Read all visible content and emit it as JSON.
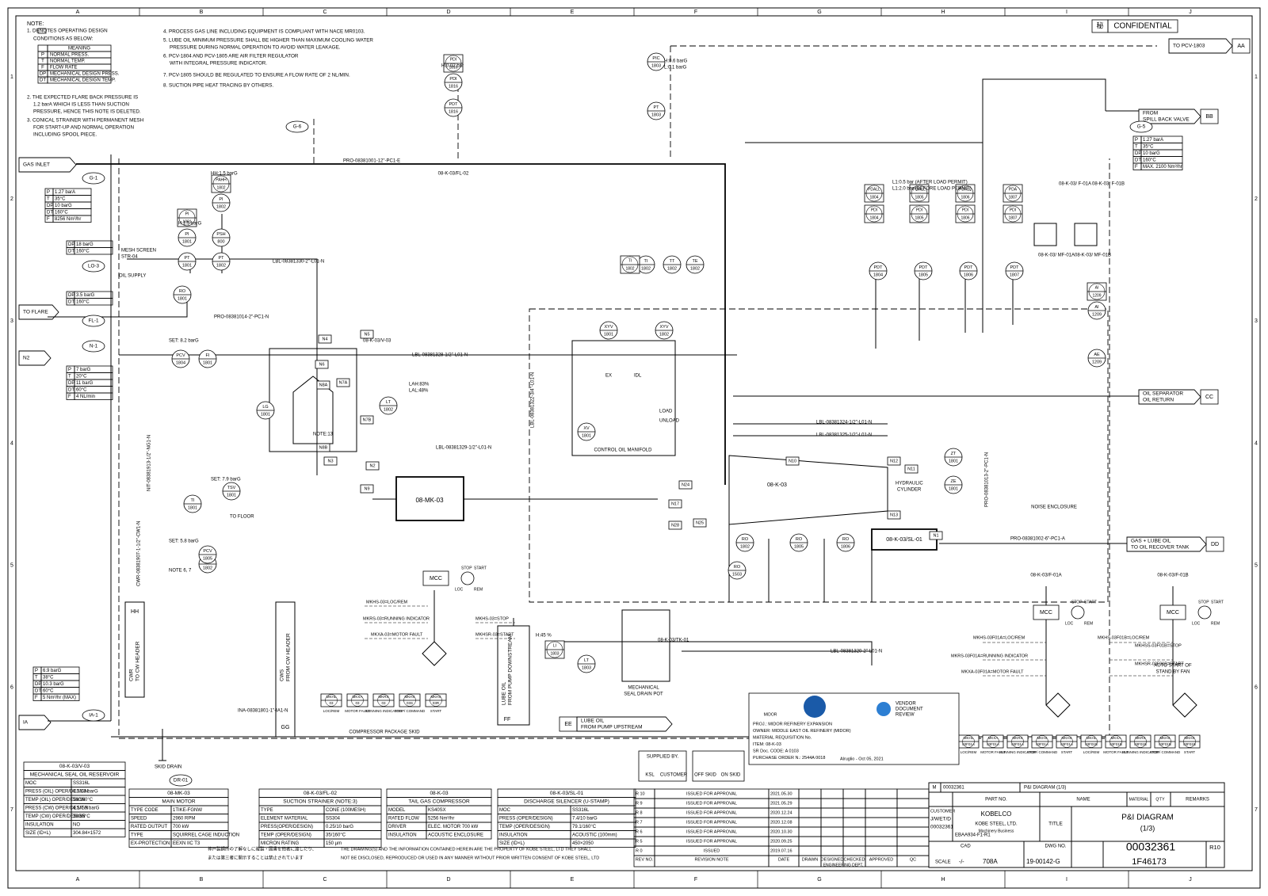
{
  "header": {
    "confidential_mark": "秘",
    "confidential": "CONFIDENTIAL"
  },
  "grid": {
    "columns": [
      "A",
      "B",
      "C",
      "D",
      "E",
      "F",
      "G",
      "H",
      "I",
      "J"
    ],
    "rows": [
      "1",
      "2",
      "3",
      "4",
      "5",
      "6",
      "7"
    ]
  },
  "notes": {
    "title": "NOTE:",
    "items": [
      [
        "1.      DENOTES OPERATING DESIGN",
        "CONDITIONS AS BELOW:"
      ],
      [
        "2. THE EXPECTED FLARE BACK PRESSURE IS",
        "1.2 barA WHICH IS LESS THAN SUCTION",
        "PRESSURE, HENCE THIS NOTE IS DELETED."
      ],
      [
        "3. CONICAL STRAINER WITH PERMANENT MESH",
        "FOR START-UP AND NORMAL OPERATION",
        "INCLUDING SPOOL PIECE."
      ],
      [
        "4. PROCESS GAS LINE INCLUDING EQUIPMENT IS COMPLIANT WITH NACE MR0103."
      ],
      [
        "5. LUBE OIL MINIMUM PRESSURE SHALL BE HIGHER THAN MAXIMUM COOLING WATER",
        "PRESSURE DURING NORMAL OPERATION TO AVOID WATER LEAKAGE."
      ],
      [
        "6. PCV-1804 AND PCV-1805 ARE AIR FILTER REGULATOR",
        "WITH INTEGRAL PRESSURE INDICATOR."
      ],
      [
        "7. PCV-1805 SHOULD BE REGULATED TO ENSURE A FLOW RATE OF 2 NL/MIN."
      ],
      [
        "8. SUCTION PIPE HEAT TRACING BY OTHERS."
      ]
    ],
    "legend": {
      "header": "MEANING",
      "rows": [
        [
          "P",
          "NORMAL PRESS."
        ],
        [
          "T",
          "NORMAL TEMP."
        ],
        [
          "F",
          "FLOW RATE"
        ],
        [
          "DP",
          "MECHANICAL DESIGN PRESS."
        ],
        [
          "DT",
          "MECHANICAL DESIGN TEMP."
        ]
      ]
    }
  },
  "connectors": [
    {
      "label": [
        "GAS INLET"
      ]
    },
    {
      "label": [
        "TO FLARE"
      ]
    },
    {
      "label": [
        "N2"
      ]
    },
    {
      "label": [
        "IA"
      ]
    },
    {
      "code": "AA",
      "label": [
        "TO PCV-1803"
      ]
    },
    {
      "code": "BB",
      "label": [
        "FROM",
        "SPILL BACK VALVE"
      ]
    },
    {
      "code": "CC",
      "label": [
        "OIL SEPARATOR",
        "OIL RETURN"
      ]
    },
    {
      "code": "DD",
      "label": [
        "GAS + LUBE OIL",
        "TO OIL RECOVER TANK"
      ]
    },
    {
      "code": "EE",
      "label": [
        "LUBE OIL",
        "FROM PUMP UPSTREAM"
      ]
    },
    {
      "code": "HH",
      "label": [
        "CWR",
        "TO CW HEADER"
      ]
    },
    {
      "code": "GG",
      "label": [
        "CWS",
        "FROM CW HEADER"
      ]
    },
    {
      "code": "FF",
      "label": [
        "LUBE OIL",
        "FROM PUMP DOWNSTREAM"
      ]
    }
  ],
  "callouts": [
    "G-1",
    "G-5",
    "LO-3",
    "FL-1",
    "N-1",
    "IA-1",
    "G-6",
    "DR-01"
  ],
  "conditions": [
    [
      [
        "P",
        "1.27 barA"
      ],
      [
        "T",
        "35°C"
      ],
      [
        "DP",
        "10 barG"
      ],
      [
        "DT",
        "160°C"
      ],
      [
        "F",
        "8256 Nm³/hr"
      ]
    ],
    [
      [
        "P",
        "1.27 barA"
      ],
      [
        "T",
        "35°C"
      ],
      [
        "DP",
        "10 barG"
      ],
      [
        "DT",
        "160°C"
      ],
      [
        "F",
        "MAX. 2100 Nm³/hr"
      ]
    ],
    [
      [
        "DP",
        "18 barG"
      ],
      [
        "DT",
        "160°C"
      ]
    ],
    [
      [
        "DP",
        "3.5 barG"
      ],
      [
        "DT",
        "160°C"
      ]
    ],
    [
      [
        "P",
        "7 barG"
      ],
      [
        "T",
        "20°C"
      ],
      [
        "DP",
        "11 barG"
      ],
      [
        "DT",
        "60°C"
      ],
      [
        "F",
        "4 NL/min"
      ]
    ],
    [
      [
        "P",
        "6.9 barG"
      ],
      [
        "T",
        "38°C"
      ],
      [
        "DP",
        "10.3 barG"
      ],
      [
        "DT",
        "60°C"
      ],
      [
        "F",
        "5 Nm³/hr (MAX)"
      ]
    ]
  ],
  "instruments": [
    {
      "tag": "PDI",
      "num": "1816"
    },
    {
      "tag": "PDT",
      "num": "1816"
    },
    {
      "tag": "PIC",
      "num": "1803"
    },
    {
      "tag": "PT",
      "num": "1803"
    },
    {
      "tag": "PI",
      "num": "1802"
    },
    {
      "tag": "PSH",
      "num": "800"
    },
    {
      "tag": "PI",
      "num": "1801"
    },
    {
      "tag": "PT",
      "num": "1801"
    },
    {
      "tag": "PT",
      "num": "1802"
    },
    {
      "tag": "TI",
      "num": "1802"
    },
    {
      "tag": "TT",
      "num": "1802"
    },
    {
      "tag": "TE",
      "num": "1802"
    },
    {
      "tag": "RO",
      "num": "1801"
    },
    {
      "tag": "PCV",
      "num": "1804"
    },
    {
      "tag": "FI",
      "num": "1801"
    },
    {
      "tag": "LG",
      "num": "1801"
    },
    {
      "tag": "LT",
      "num": "1802"
    },
    {
      "tag": "TI",
      "num": "1801"
    },
    {
      "tag": "TSV",
      "num": "1801"
    },
    {
      "tag": "FI",
      "num": "1802"
    },
    {
      "tag": "XYV",
      "num": "1801"
    },
    {
      "tag": "XYV",
      "num": "1802"
    },
    {
      "tag": "XV",
      "num": "1801"
    },
    {
      "tag": "PDT",
      "num": "1804"
    },
    {
      "tag": "PDT",
      "num": "1805"
    },
    {
      "tag": "PDT",
      "num": "1806"
    },
    {
      "tag": "PDT",
      "num": "1807"
    },
    {
      "tag": "AI",
      "num": "1209"
    },
    {
      "tag": "AE",
      "num": "1209"
    },
    {
      "tag": "ZT",
      "num": "1801"
    },
    {
      "tag": "ZE",
      "num": "1801"
    },
    {
      "tag": "RO",
      "num": "1802"
    },
    {
      "tag": "RO",
      "num": "1805"
    },
    {
      "tag": "RO",
      "num": "1806"
    },
    {
      "tag": "RO",
      "num": "1503"
    },
    {
      "tag": "LT",
      "num": "1803"
    },
    {
      "tag": "PCV",
      "num": "1805"
    }
  ],
  "panel_instruments": [
    {
      "tag": "PDI",
      "num": "1816"
    },
    {
      "tag": "PAHH",
      "num": "1802"
    },
    {
      "tag": "PI",
      "num": "1801"
    },
    {
      "tag": "PDALL",
      "num": "1804"
    },
    {
      "tag": "PDI",
      "num": "1804"
    },
    {
      "tag": "PDALL",
      "num": "1805"
    },
    {
      "tag": "PDI",
      "num": "1805"
    },
    {
      "tag": "PDALL",
      "num": "1806"
    },
    {
      "tag": "PDI",
      "num": "1806"
    },
    {
      "tag": "PDA",
      "num": "1807"
    },
    {
      "tag": "PDI",
      "num": "1807"
    },
    {
      "tag": "TI",
      "num": "1802"
    },
    {
      "tag": "LI",
      "num": "1803"
    },
    {
      "tag": "AI",
      "num": "1209"
    }
  ],
  "nozzles": [
    "N4",
    "N5",
    "N6",
    "N7A",
    "N7B",
    "N8A",
    "N8B",
    "N3",
    "N2",
    "N9",
    "N24",
    "N25",
    "N17",
    "N28",
    "N10",
    "N12",
    "N11",
    "N13",
    "N1"
  ],
  "line_numbers": [
    "PRO-08381001-12\"-PC1-E",
    "LBL-08381330-2\"-L01-N",
    "PRO-08381014-2\"-PC1-N",
    "LBL-08381328-1/2\"-L01-N",
    "LBL-08381329-1/2\"-L01-N",
    "LBL-08381324-1/2\"-L01-N",
    "LBL-08381325-1/2\"-L01-N",
    "PRO-08381002-6\"-PC1-A",
    "LBL-08381320-2\"-L01-N",
    "INA-08381801-1\"-IA1-N",
    "NIT-08381913-1/2\"-NG1-N",
    "CWR-08381907-1-1/2\"-CW1-N",
    "PRO-08381013-2\"-PC1-N",
    "LBL-08381322-3/4\"-L01-N"
  ],
  "labels": [
    "08-K-03/V-03",
    "08-MK-03",
    "08-K-03",
    "HYDRAULIC",
    "CYLINDER",
    "CONTROL OIL MANIFOLD",
    "08-K-03/SL-01",
    "08-K-03/TK-01",
    "MECHANICAL",
    "SEAL DRAIN POT",
    "NOISE ENCLOSURE",
    "COMPRESSOR PACKAGE SKID",
    "08-K-03/FL-02",
    "08-K-03/ F-01A",
    "08-K-03/ F-01B",
    "08-K-03/ MF-01A",
    "08-K-03/ MF-01B",
    "NOTE:13",
    "SKID DRAIN",
    "TO FLOOR",
    "08-K-03/F-01A",
    "08-K-03/F-01B",
    "AUTO START OF",
    "STAND BY FAN",
    "MESH SCREEN",
    "STR-04",
    "OIL SUPPLY",
    "H:0.02 bar",
    "H:0.6 barG",
    "L:0.1 barG",
    "HH:1.5 barG",
    "H:1.5 barG",
    "L1:0.5 bar (AFTER LOAD PERMIT)",
    "L1:2.0 bar (BEFORE LOAD PERMIT)",
    "H:45 %",
    "LAH:83%",
    "LAL:48%",
    "SET: 8.2 barG",
    "SET: 5.8 barG",
    "SET: 7.9 barG",
    "NOTE 6, 7",
    "LOAD",
    "UNLOAD",
    "EX",
    "IDL"
  ],
  "mcc": {
    "label": "MCC",
    "stop": "STOP",
    "start": "START",
    "loc": "LOC",
    "rem": "REM"
  },
  "signals": [
    "MKHS-03=LOC/REM",
    "MKRS-03=RUNNING INDICATOR",
    "MKHS-03=STOP",
    "MKXA-03=MOTOR FAULT",
    "MKHSR-03=START",
    "MKHS-03F01A=LOC/REM",
    "MKRS-03F01A=RUNNING INDICATOR",
    "MKXA-03F01A=MOTOR FAULT",
    "MKHS-03F01B=LOC/REM",
    "MKHSS-03F01B=STOP",
    "MKHSR-03F01B=START"
  ],
  "hand_switches": [
    {
      "tag": "MKHL",
      "num": "03",
      "desc": "LOC/REM"
    },
    {
      "tag": "MKXA",
      "num": "03",
      "desc": "MOTOR FAULT"
    },
    {
      "tag": "MKRS",
      "num": "03",
      "desc": "RUNNING INDICATOR"
    },
    {
      "tag": "MKHS",
      "num": "03S",
      "desc": "STOP/ COMMAND"
    },
    {
      "tag": "MKHS",
      "num": "03R",
      "desc": "START"
    },
    {
      "tag": "MKHL",
      "num": "03F01A",
      "desc": "LOC/REM"
    },
    {
      "tag": "MKXA",
      "num": "03F01A",
      "desc": "MOTOR FAULT"
    },
    {
      "tag": "MKRS",
      "num": "03F01A",
      "desc": "RUNNING INDICATOR"
    },
    {
      "tag": "MKHS",
      "num": "03F01A",
      "desc": "STOP/ COMMAND"
    },
    {
      "tag": "MKHS",
      "num": "03F01A",
      "desc": "START"
    },
    {
      "tag": "MKHL",
      "num": "03F01B",
      "desc": "LOC/REM"
    },
    {
      "tag": "MKXA",
      "num": "03F01B",
      "desc": "MOTOR FAULT"
    },
    {
      "tag": "MKRS",
      "num": "03F01B",
      "desc": "RUNNING INDICATOR"
    },
    {
      "tag": "MKHS",
      "num": "03F01B",
      "desc": "STOP/ COMMAND"
    },
    {
      "tag": "MKHS",
      "num": "03F01B",
      "desc": "START"
    }
  ],
  "supplied": {
    "title": "SUPPLIED BY.",
    "a": "KSL",
    "b": "CUSTOMER",
    "c": "OFF SKID",
    "d": "ON SKID"
  },
  "stamp": {
    "logo": "MIDOR",
    "lines": [
      "PROJ.: MIDOR REFINERY EXPANSION",
      "OWNER: MIDDLE EAST OIL REFINERY (MIDOR)",
      "MATERIAL REQUISITION No.",
      "ITEM: 08-K-03",
      "SR Doc. CODE: A 0103",
      "PURCHASE ORDER N.: 2544A 0018"
    ],
    "sign": "Alruglio - Oct 05, 2021",
    "review": [
      "VENDOR",
      "DOCUMENT",
      "REVIEW"
    ]
  },
  "tables": [
    {
      "title": "08-K-03/V-03",
      "subtitle": "MECHANICAL SEAL OIL RESERVOIR",
      "rows": [
        [
          "MOC",
          "SS316L"
        ],
        [
          "PRESS (OIL) OPER/DESIGN",
          "0.3/18 barG"
        ],
        [
          "TEMP (OIL) OPER/DESIGN",
          "56/160°C"
        ],
        [
          "PRESS (CW) OPER/DESIGN",
          "4.1/7.9 barG"
        ],
        [
          "TEMP (CW) OPER/DESIGN",
          "38/65°C"
        ],
        [
          "INSULATION",
          "NO"
        ],
        [
          "SIZE (ID×L)",
          "304.84×1572"
        ]
      ]
    },
    {
      "title": "08-MK-03",
      "subtitle": "MAIN MOTOR",
      "rows": [
        [
          "TYPE CODE",
          "1TIKE-FGNW"
        ],
        [
          "SPEED",
          "2960 RPM"
        ],
        [
          "RATED OUTPUT",
          "700 kW"
        ],
        [
          "TYPE",
          "SQUIRREL CAGE INDUCTION"
        ],
        [
          "EX-PROTECTION",
          "EEXN IIC T3"
        ]
      ]
    },
    {
      "title": "08-K-03/FL-02",
      "subtitle": "SUCTION STRAINER (NOTE:3)",
      "rows": [
        [
          "TYPE",
          "CONE (100MESH)"
        ],
        [
          "ELEMENT MATERIAL",
          "SS304"
        ],
        [
          "PRESS(OPER/DESIGN)",
          "0.25/10 barG"
        ],
        [
          "TEMP (OPER/DESIGN)",
          "35/160°C"
        ],
        [
          "MICRON RATING",
          "150 µm"
        ]
      ]
    },
    {
      "title": "08-K-03",
      "subtitle": "TAIL GAS COMPRESSOR",
      "rows": [
        [
          "MODEL",
          "KS40SX"
        ],
        [
          "RATED FLOW",
          "5256 Nm³/hr"
        ],
        [
          "DRIVER",
          "ELEC. MOTOR 700 kW"
        ],
        [
          "INSULATION",
          "ACOUSTIC ENCLOSURE"
        ]
      ]
    },
    {
      "title": "08-K-03/SL-01",
      "subtitle": "DISCHARGE SILENCER (U-STAMP)",
      "rows": [
        [
          "MOC",
          "SS316L"
        ],
        [
          "PRESS (OPER/DESIGN)",
          "7.4/10 barG"
        ],
        [
          "TEMP (OPER/DESIGN)",
          "79.1/160°C"
        ],
        [
          "INSULATION",
          "ACOUSTIC (100mm)"
        ],
        [
          "SIZE (ID×L)",
          "450×2050"
        ]
      ]
    }
  ],
  "revisions": {
    "rows": [
      [
        "R 10",
        "ISSUED FOR APPROVAL",
        "2021.05.30"
      ],
      [
        "R 9",
        "ISSUED FOR APPROVAL",
        "2021.05.29"
      ],
      [
        "R 8",
        "ISSUED FOR APPROVAL",
        "2020.12.24"
      ],
      [
        "R 7",
        "ISSUED FOR APPROVAL",
        "2020.12.08"
      ],
      [
        "R 6",
        "ISSUED FOR APPROVAL",
        "2020.10.30"
      ],
      [
        "R 5",
        "ISSUED FOR APPROVAL",
        "2020.09.25"
      ],
      [
        "R 0",
        "ISSUED",
        "2019.07.16"
      ]
    ],
    "header": [
      "REV NO.",
      "REVISION NOTE",
      "DATE",
      "DRAWN",
      "DESIGNED",
      "CHECKED",
      "APPROVED",
      "QC"
    ],
    "dept": "ENGINEERING DEPT."
  },
  "title_block": {
    "m": "M",
    "doc_no": "00032361",
    "title_small": "P&I DIAGRAM (1/3)",
    "part_no": "PART NO.",
    "name": "NAME",
    "material": "MATERIAL",
    "qty": "Q'TY",
    "remarks": "REMARKS",
    "customer_label": "CUSTOMER",
    "customer": "J/WET/D",
    "cust_dwg": "00032361",
    "cust_ref": "EBAA934-F1-R1",
    "cad": "CAD",
    "maker": "KOBELCO",
    "company": "KOBE STEEL, LTD.",
    "division": "Machinery Business",
    "title_label": "TITLE",
    "title": "P&I DIAGRAM",
    "sheet": "(1/3)",
    "dwg_label": "DWG NO.",
    "dwg_no": "00032361",
    "rev": "R10",
    "scale_label": "SCALE",
    "scale": "-/-",
    "code": "708A",
    "std": "19-00142-G",
    "f": "1F46173"
  },
  "footer": [
    "神戸製鋼所の了解なしに複製・図書を他者に渡したり、",
    "または第三者に開示することは禁止されています",
    "THE DRAWING(S) AND THE INFORMATION CONTAINED HEREIN ARE THE PROPERTY OF KOBE STEEL, LTD THEY SHALL",
    "NOT BE DISCLOSED, REPRODUCED OR USED IN ANY MANNER WITHOUT PRIOR WRITTEN CONSENT OF KOBE STEEL, LTD"
  ]
}
